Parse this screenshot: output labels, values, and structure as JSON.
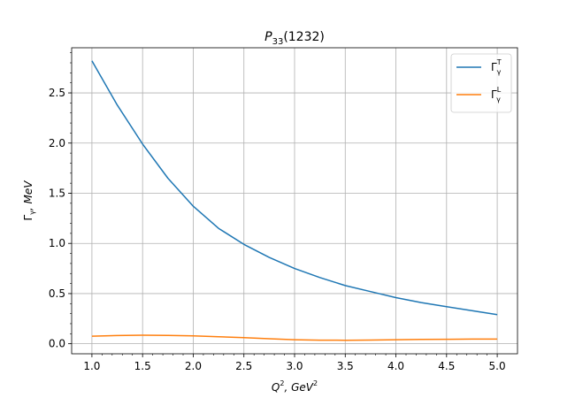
{
  "chart_data": {
    "type": "line",
    "title": {
      "main": "P",
      "sub": "33",
      "rest": "(1232)"
    },
    "xlabel": {
      "base": "Q",
      "sup": "2",
      "rest": ", GeV",
      "sup2": "2"
    },
    "ylabel": {
      "base": "Γ",
      "sub": "γ",
      "rest": ", MeV"
    },
    "xlim": [
      0.8,
      5.2
    ],
    "ylim": [
      -0.1,
      2.95
    ],
    "xticks": [
      1.0,
      1.5,
      2.0,
      2.5,
      3.0,
      3.5,
      4.0,
      4.5,
      5.0
    ],
    "xtick_labels": [
      "1.0",
      "1.5",
      "2.0",
      "2.5",
      "3.0",
      "3.5",
      "4.0",
      "4.5",
      "5.0"
    ],
    "yticks": [
      0.0,
      0.5,
      1.0,
      1.5,
      2.0,
      2.5
    ],
    "ytick_labels": [
      "0.0",
      "0.5",
      "1.0",
      "1.5",
      "2.0",
      "2.5"
    ],
    "grid": true,
    "legend_position": "top-right",
    "x": [
      1.0,
      1.25,
      1.5,
      1.75,
      2.0,
      2.25,
      2.5,
      2.75,
      3.0,
      3.25,
      3.5,
      3.75,
      4.0,
      4.25,
      4.5,
      4.75,
      5.0
    ],
    "series": [
      {
        "name": {
          "base": "Γ",
          "sub": "γ",
          "sup": "T"
        },
        "color": "#1f77b4",
        "values": [
          2.82,
          2.38,
          1.99,
          1.65,
          1.37,
          1.15,
          0.99,
          0.86,
          0.75,
          0.66,
          0.58,
          0.52,
          0.46,
          0.41,
          0.37,
          0.33,
          0.29
        ]
      },
      {
        "name": {
          "base": "Γ",
          "sub": "γ",
          "sup": "L"
        },
        "color": "#ff7f0e",
        "values": [
          0.075,
          0.082,
          0.085,
          0.083,
          0.078,
          0.07,
          0.06,
          0.05,
          0.04,
          0.036,
          0.035,
          0.037,
          0.04,
          0.043,
          0.045,
          0.046,
          0.046
        ]
      }
    ]
  }
}
